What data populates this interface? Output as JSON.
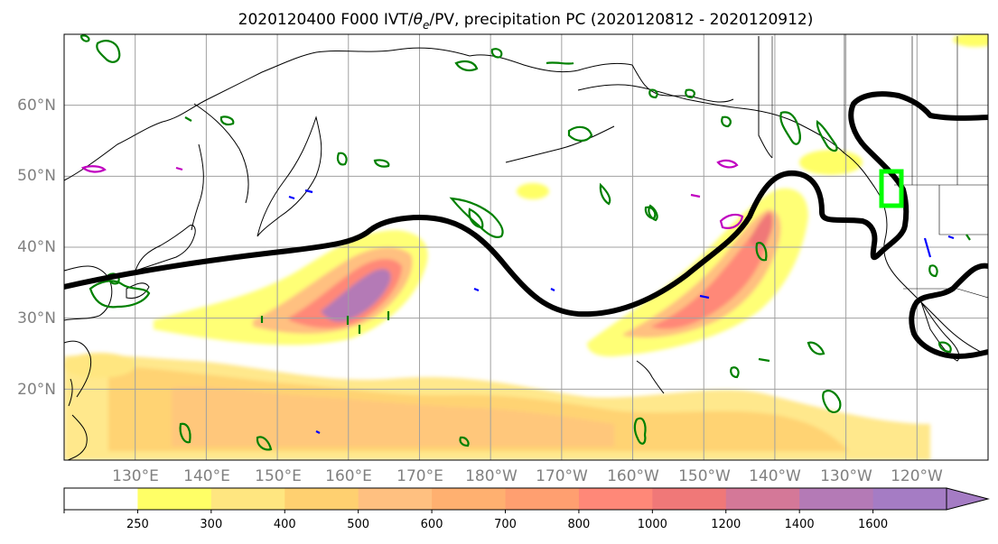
{
  "title": {
    "prefix": "2020120400 F000 IVT/",
    "theta": "θ",
    "theta_sub": "e",
    "suffix": "/PV, precipitation PC (2020120812 - 2020120912)"
  },
  "map": {
    "lat_labels": [
      "20°N",
      "30°N",
      "40°N",
      "50°N",
      "60°N"
    ],
    "lon_labels": [
      "130°E",
      "140°E",
      "150°E",
      "160°E",
      "170°E",
      "180°W",
      "170°W",
      "160°W",
      "150°W",
      "140°W",
      "130°W",
      "120°W"
    ],
    "lat_range": [
      10,
      70
    ],
    "lon_range": [
      120,
      250
    ],
    "lat_values": [
      20,
      30,
      40,
      50,
      60
    ],
    "lon_values": [
      130,
      140,
      150,
      160,
      170,
      180,
      190,
      200,
      210,
      220,
      230,
      240
    ],
    "grid": true
  },
  "colorbar": {
    "ticks": [
      "250",
      "300",
      "400",
      "500",
      "600",
      "700",
      "800",
      "1000",
      "1200",
      "1400",
      "1600"
    ],
    "colors": [
      "#ffffff",
      "#ffff66",
      "#ffe680",
      "#ffd070",
      "#ffc080",
      "#ffb070",
      "#ff9f70",
      "#ff8878",
      "#f07878",
      "#d47898",
      "#b47ab6",
      "#a57cc4"
    ],
    "extend": "max"
  },
  "colors": {
    "ivt_low": "#ffff80",
    "ivt_mid": "#ffc070",
    "ivt_high": "#ff8080",
    "ivt_max": "#b07ab8",
    "pv_contour": "#000000",
    "precip_contour": "#008000",
    "box": "#00ff00",
    "magenta": "#c000c0",
    "blue": "#0000ff"
  }
}
